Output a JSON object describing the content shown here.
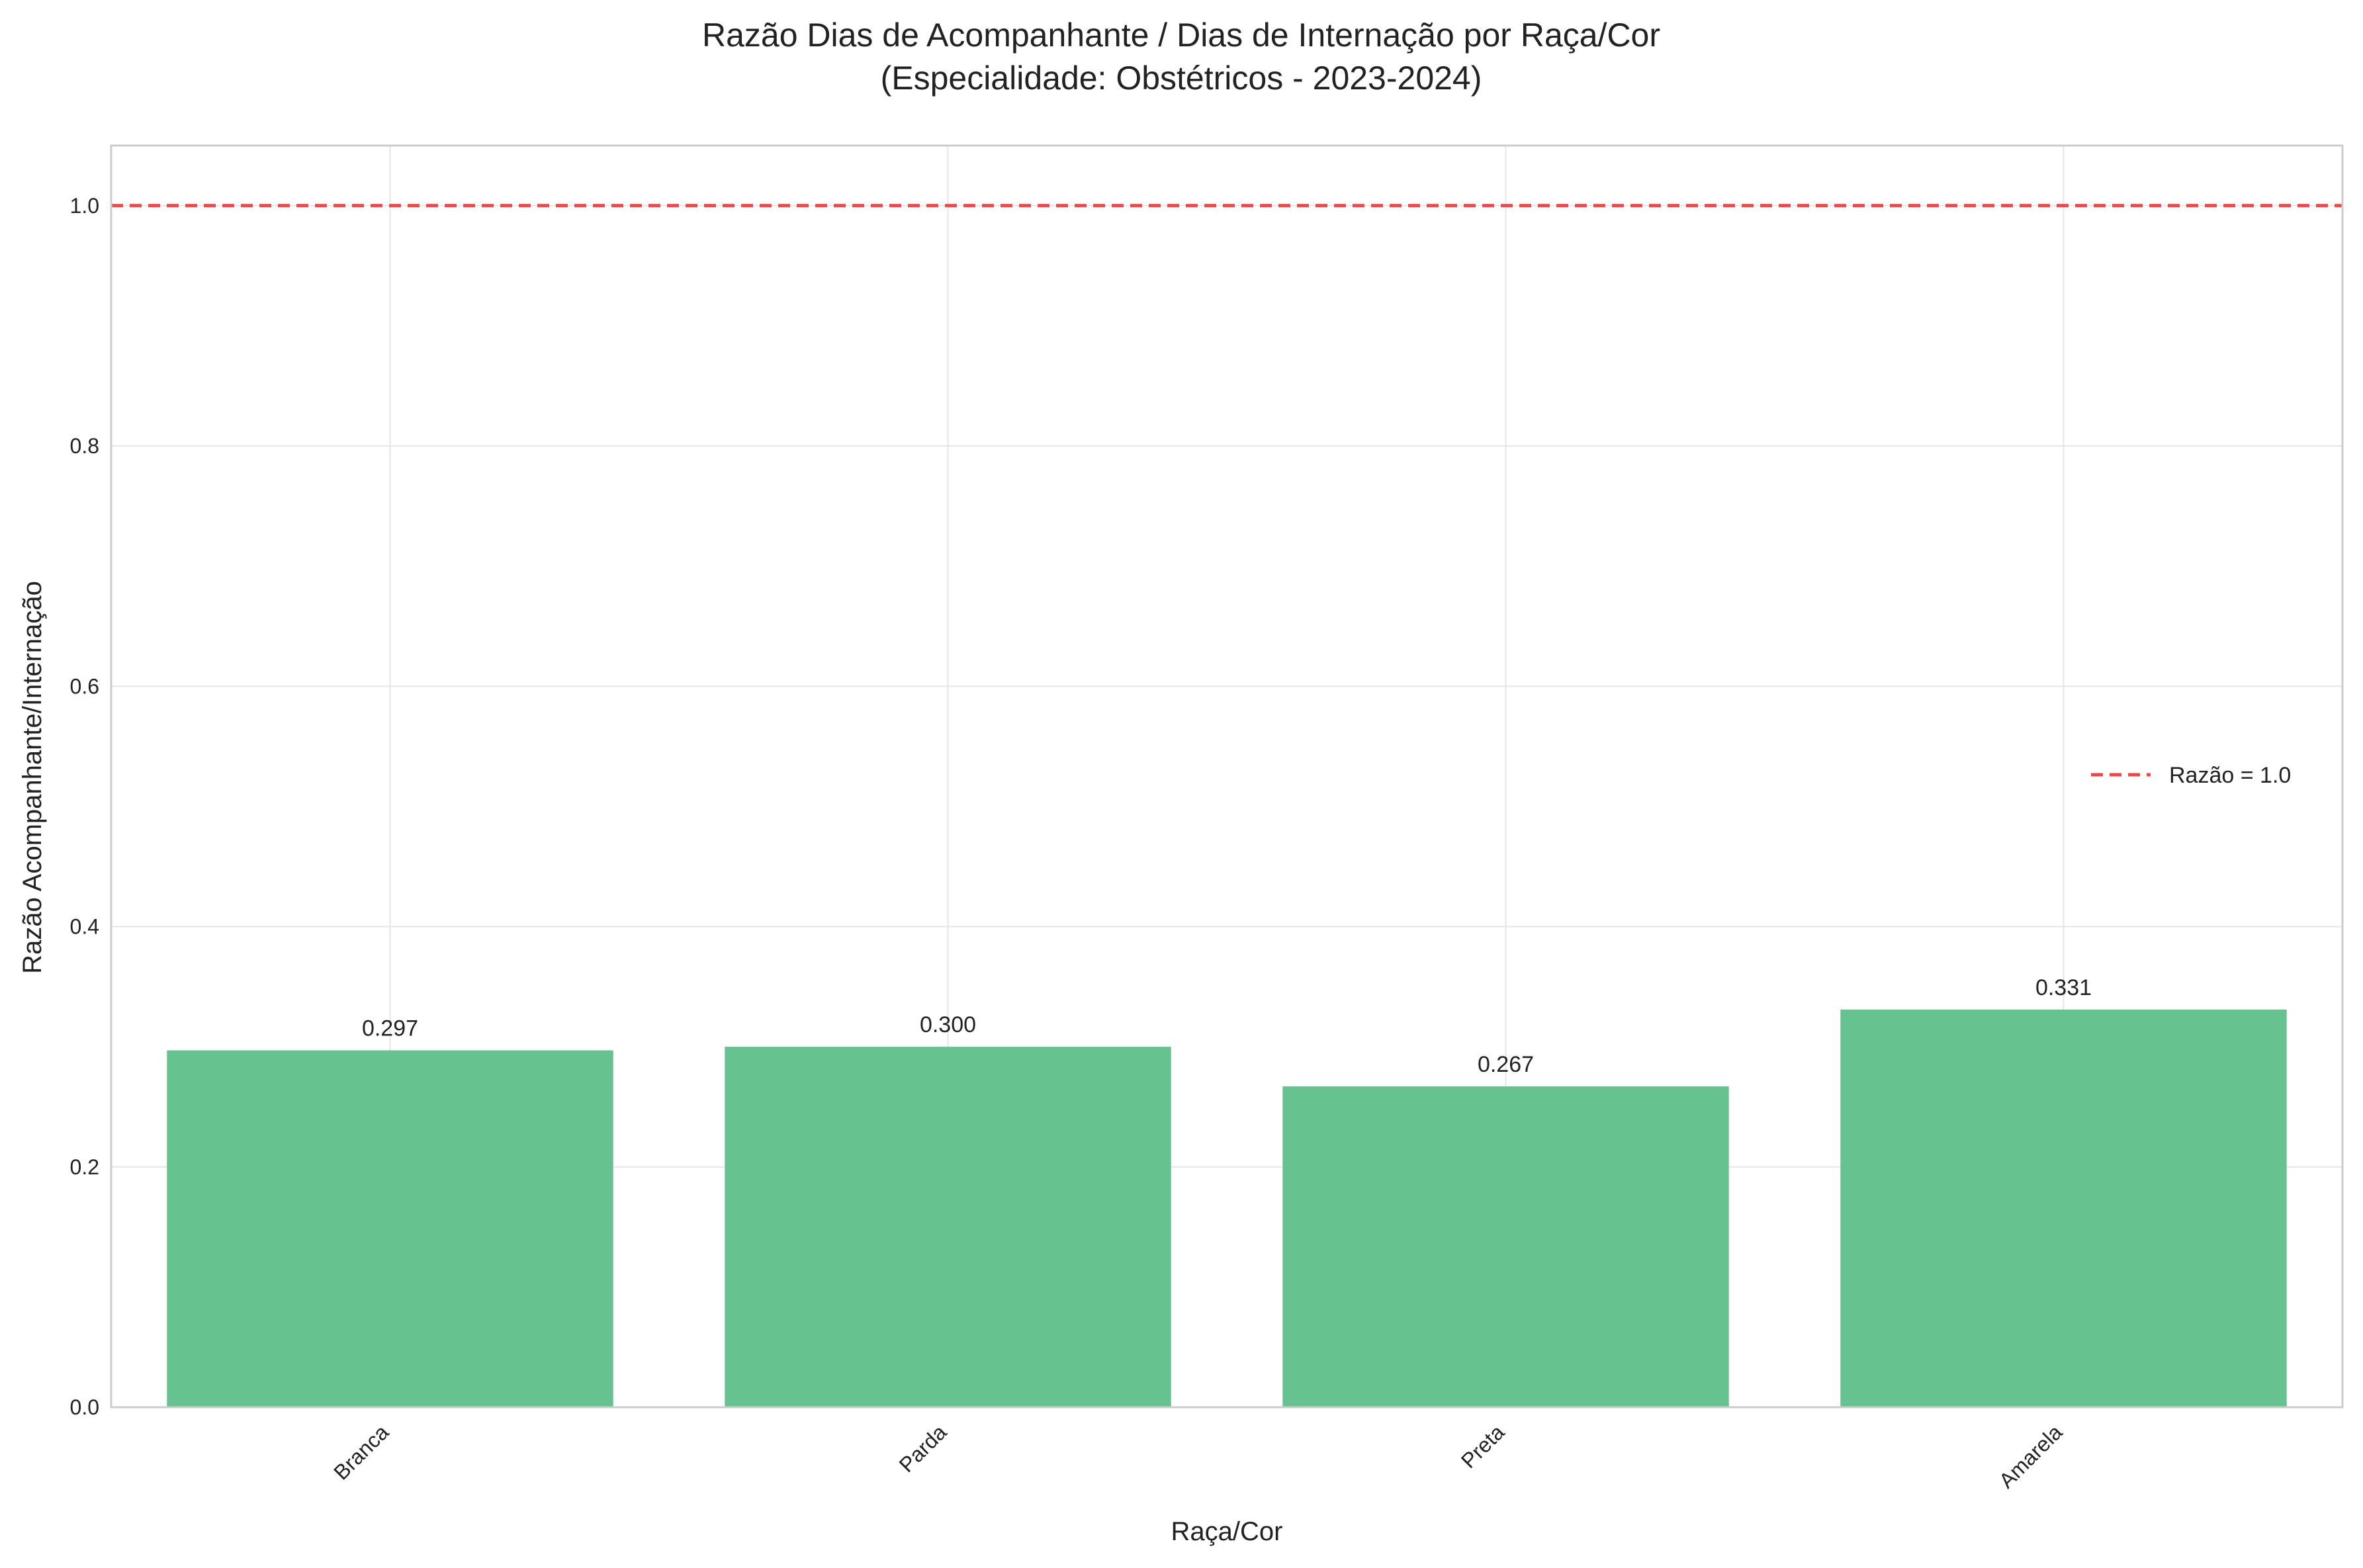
{
  "chart_data": {
    "type": "bar",
    "title": "Razão Dias de Acompanhante / Dias de Internação por Raça/Cor",
    "subtitle": "(Especialidade: Obstétricos - 2023-2024)",
    "xlabel": "Raça/Cor",
    "ylabel": "Razão Acompanhante/Internação",
    "categories": [
      "Branca",
      "Parda",
      "Preta",
      "Amarela"
    ],
    "values": [
      0.297,
      0.3,
      0.267,
      0.331
    ],
    "value_labels": [
      "0.297",
      "0.300",
      "0.267",
      "0.331"
    ],
    "ylim": [
      0,
      1.05
    ],
    "yticks": [
      0.0,
      0.2,
      0.4,
      0.6,
      0.8,
      1.0
    ],
    "ytick_labels": [
      "0.0",
      "0.2",
      "0.4",
      "0.6",
      "0.8",
      "1.0"
    ],
    "grid": true,
    "reference_line": {
      "y": 1.0,
      "style": "dashed",
      "label": "Razão = 1.0"
    },
    "legend": {
      "placement": "center-right",
      "entries": [
        "Razão = 1.0"
      ]
    },
    "colors": {
      "bar": "#66c28e",
      "reference_line": "#e84a4a",
      "grid": "#e6e6e6",
      "spine": "#cccccc"
    }
  }
}
